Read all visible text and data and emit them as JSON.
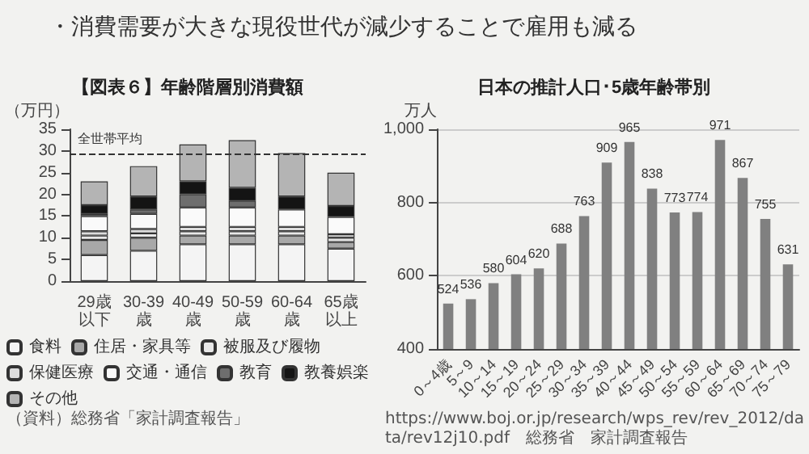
{
  "chart_data": [
    {
      "type": "other",
      "title": "・消費需要が大きな現役世代が減少することで雇用も減る"
    },
    {
      "type": "bar",
      "title": "【図表６】年齢階層別消費額",
      "ylabel": "（万円）",
      "stacked": true,
      "legend": "bottom",
      "grid": false,
      "categories": [
        "29歳以下",
        "30-39歳",
        "40-49歳",
        "50-59歳",
        "60-64歳",
        "65歳以上"
      ],
      "ylim": [
        0,
        35
      ],
      "yticks": [
        0,
        5,
        10,
        15,
        20,
        25,
        30,
        35
      ],
      "ref_lines": [
        {
          "axis": "y",
          "value": 29.5,
          "label": "全世帯平均",
          "line_style": "dashed"
        }
      ],
      "annotations": [
        "（資料）総務省「家計調査報告」"
      ],
      "series": [
        {
          "name": "食料",
          "color": "#f4f4f4",
          "values": [
            6,
            7,
            8.5,
            8.5,
            8.5,
            7.5
          ]
        },
        {
          "name": "住居・家具等",
          "color": "#a8a8a8",
          "values": [
            3.5,
            3,
            2,
            2,
            2,
            1.5
          ]
        },
        {
          "name": "被服及び履物",
          "color": "#e8e8e8",
          "values": [
            1,
            1,
            1,
            1,
            1,
            1
          ]
        },
        {
          "name": "保健医療",
          "color": "#dcdcdc",
          "values": [
            1,
            1,
            1,
            1,
            1,
            0.8
          ]
        },
        {
          "name": "交通・通信",
          "color": "#fafafa",
          "values": [
            3.5,
            3.5,
            4.5,
            4.5,
            4,
            4
          ]
        },
        {
          "name": "教育",
          "color": "#6e6e6e",
          "values": [
            0.5,
            1,
            3,
            1.5,
            null,
            null
          ]
        },
        {
          "name": "教養娯楽",
          "color": "#141414",
          "values": [
            2,
            3,
            3,
            3,
            3,
            2.5
          ]
        },
        {
          "name": "その他",
          "color": "#b4b4b4",
          "values": [
            5.5,
            7,
            8.5,
            11,
            10,
            7.7
          ]
        }
      ]
    },
    {
      "type": "bar",
      "title": "日本の推計人口･5歳年齢帯別",
      "ylabel": "万人",
      "grid": "y",
      "data_labels": true,
      "categories": [
        "0～4歳",
        "5～9",
        "10～14",
        "15～19",
        "20～24",
        "25～29",
        "30～34",
        "35～39",
        "40～44",
        "45～49",
        "50～54",
        "55～59",
        "60～64",
        "65～69",
        "70～74",
        "75～79"
      ],
      "values": [
        524,
        536,
        580,
        604,
        620,
        688,
        763,
        909,
        965,
        838,
        773,
        774,
        971,
        867,
        755,
        631
      ],
      "color": "#808080",
      "ylim": [
        400,
        1000
      ],
      "yticks": [
        400,
        600,
        800,
        {
          "value": 1000,
          "label": "1,000"
        }
      ],
      "annotations": [
        "https://www.boj.or.jp/research/wps_rev/rev_2012/data/rev12j10.pdf　総務省　家計調査報告"
      ]
    }
  ]
}
